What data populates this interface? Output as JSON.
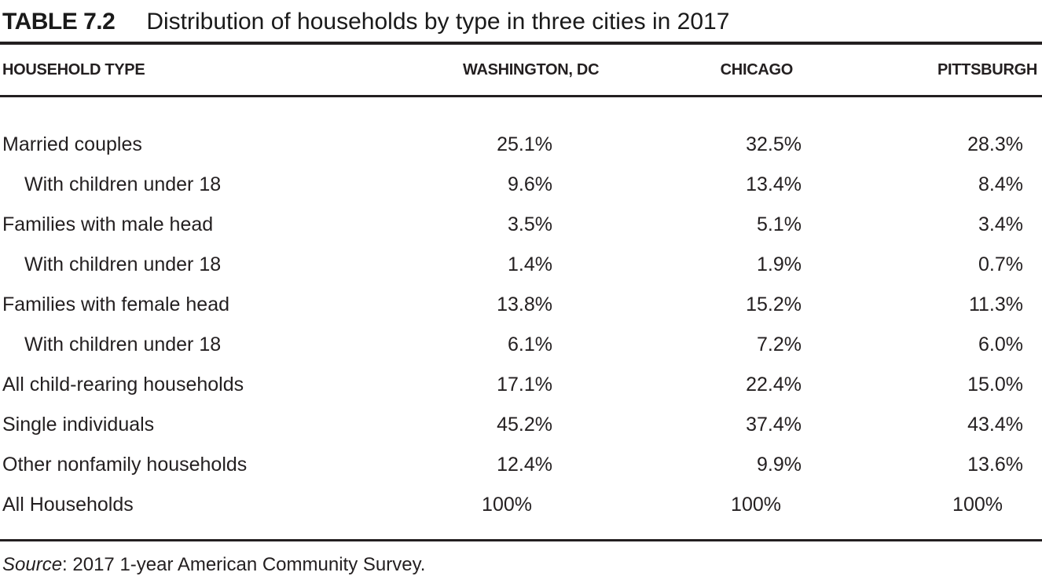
{
  "title": {
    "label": "TABLE 7.2",
    "text": "Distribution of households by type in three cities in 2017"
  },
  "chart_data": {
    "type": "table",
    "title": "TABLE 7.2  Distribution of households by type in three cities in 2017",
    "columns": [
      "HOUSEHOLD TYPE",
      "WASHINGTON, DC",
      "CHICAGO",
      "PITTSBURGH"
    ],
    "rows": [
      {
        "label": "Married couples",
        "indent": false,
        "values": [
          "25.1%",
          "32.5%",
          "28.3%"
        ]
      },
      {
        "label": "With children under 18",
        "indent": true,
        "values": [
          "9.6%",
          "13.4%",
          "8.4%"
        ]
      },
      {
        "label": "Families with male head",
        "indent": false,
        "values": [
          "3.5%",
          "5.1%",
          "3.4%"
        ]
      },
      {
        "label": "With children under 18",
        "indent": true,
        "values": [
          "1.4%",
          "1.9%",
          "0.7%"
        ]
      },
      {
        "label": "Families with female head",
        "indent": false,
        "values": [
          "13.8%",
          "15.2%",
          "11.3%"
        ]
      },
      {
        "label": "With children under 18",
        "indent": true,
        "values": [
          "6.1%",
          "7.2%",
          "6.0%"
        ]
      },
      {
        "label": "All child-rearing households",
        "indent": false,
        "values": [
          "17.1%",
          "22.4%",
          "15.0%"
        ]
      },
      {
        "label": "Single individuals",
        "indent": false,
        "values": [
          "45.2%",
          "37.4%",
          "43.4%"
        ]
      },
      {
        "label": "Other nonfamily households",
        "indent": false,
        "values": [
          "12.4%",
          "9.9%",
          "13.6%"
        ]
      },
      {
        "label": "All Households",
        "indent": false,
        "values": [
          "100%",
          "100%",
          "100%"
        ]
      }
    ],
    "source": "Source: 2017 1-year American Community Survey."
  },
  "source_note": {
    "prefix": "Source",
    "text": ": 2017 1-year American Community Survey."
  },
  "colors": {
    "text": "#231f20",
    "rule": "#231f20",
    "background": "#ffffff"
  }
}
